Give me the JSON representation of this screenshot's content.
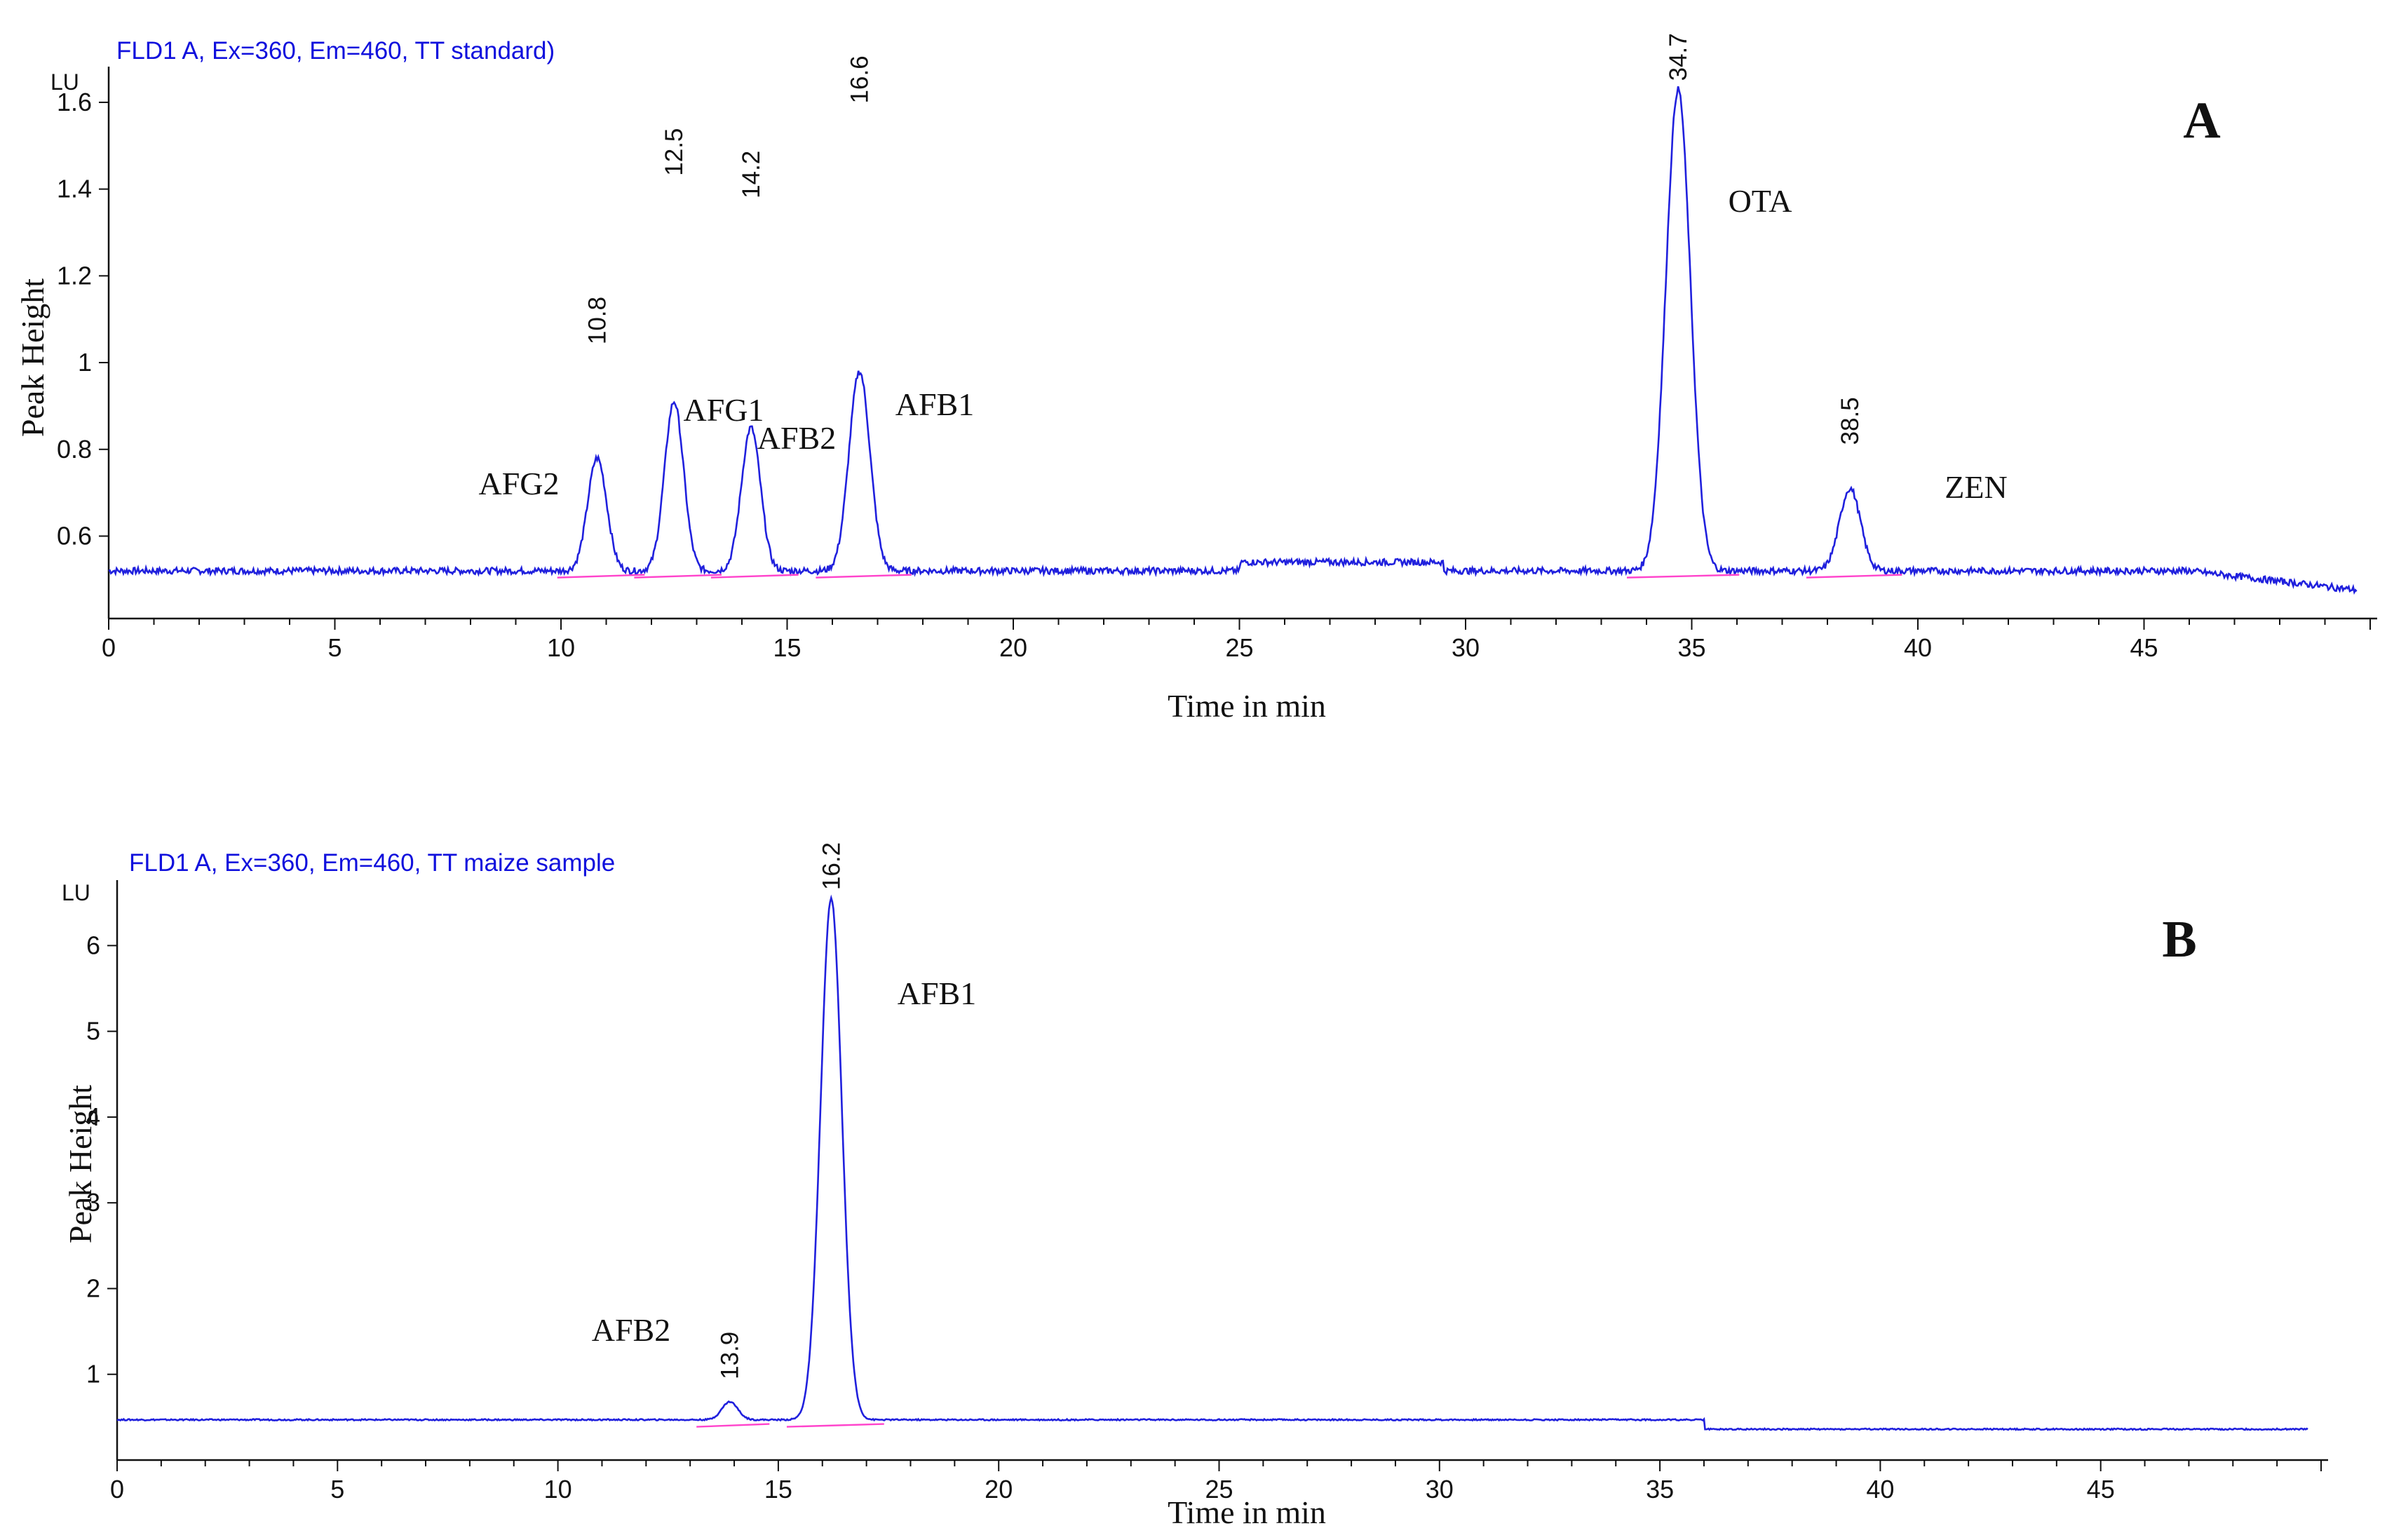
{
  "chart_data": [
    {
      "type": "line",
      "panel_label": "A",
      "header": "FLD1 A, Ex=360, Em=460, TT standard)",
      "unit": "LU",
      "xlabel": "Time in min",
      "ylabel": "Peak Height",
      "xlim": [
        0,
        50
      ],
      "ylim": [
        0.41,
        1.65
      ],
      "x_ticks": [
        0,
        5,
        10,
        15,
        20,
        25,
        30,
        35,
        40,
        45
      ],
      "y_ticks": [
        0.6,
        0.8,
        1,
        1.2,
        1.4,
        1.6
      ],
      "baseline": 0.52,
      "line_color": "#2020dd",
      "integration_color": "#ff44cc",
      "peaks": [
        {
          "rt": 10.8,
          "height": 0.78,
          "width": 0.21,
          "rt_label": "10.8",
          "compound": "AFG2"
        },
        {
          "rt": 12.5,
          "height": 0.91,
          "width": 0.21,
          "rt_label": "12.5",
          "compound": "AFG1"
        },
        {
          "rt": 14.2,
          "height": 0.85,
          "width": 0.21,
          "rt_label": "14.2",
          "compound": "AFB2"
        },
        {
          "rt": 16.6,
          "height": 0.98,
          "width": 0.23,
          "rt_label": "16.6",
          "compound": "AFB1"
        },
        {
          "rt": 34.7,
          "height": 1.63,
          "width": 0.27,
          "rt_label": "34.7",
          "compound": "OTA"
        },
        {
          "rt": 38.5,
          "height": 0.71,
          "width": 0.23,
          "rt_label": "38.5",
          "compound": "ZEN"
        }
      ]
    },
    {
      "type": "line",
      "panel_label": "B",
      "header": "FLD1 A, Ex=360, Em=460, TT maize sample",
      "unit": "LU",
      "xlabel": "Time in min",
      "ylabel": "Peak Height",
      "xlim": [
        0,
        50
      ],
      "ylim": [
        0,
        6.6
      ],
      "x_ticks": [
        0,
        5,
        10,
        15,
        20,
        25,
        30,
        35,
        40,
        45
      ],
      "y_ticks": [
        1,
        2,
        3,
        4,
        5,
        6
      ],
      "baseline": 0.47,
      "baseline_after_36": 0.36,
      "line_color": "#2020dd",
      "integration_color": "#ff44cc",
      "peaks": [
        {
          "rt": 13.9,
          "height": 0.68,
          "width": 0.18,
          "rt_label": "13.9",
          "compound": "AFB2"
        },
        {
          "rt": 16.2,
          "height": 6.55,
          "width": 0.24,
          "rt_label": "16.2",
          "compound": "AFB1"
        }
      ]
    }
  ]
}
